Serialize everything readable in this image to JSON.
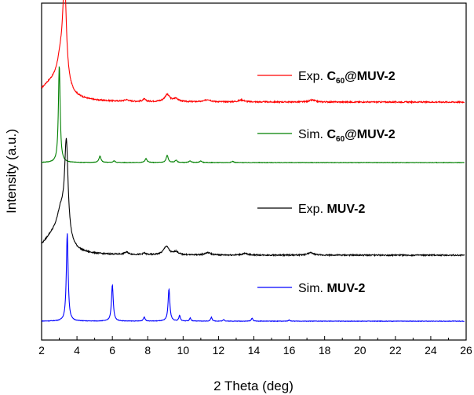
{
  "chart_data": {
    "type": "line",
    "xlabel": "2 Theta (deg)",
    "ylabel": "Intensity (a.u.)",
    "xlim": [
      2,
      26
    ],
    "xticks": [
      2,
      4,
      6,
      8,
      10,
      12,
      14,
      16,
      18,
      20,
      22,
      24,
      26
    ],
    "y_tick_labels": "none",
    "grid": false,
    "series": [
      {
        "key": "exp_c60",
        "color": "#ff0000",
        "legend": {
          "prefix": "Exp. ",
          "bold_main": "C",
          "bold_sub": "60",
          "bold_rest": "@MUV-2"
        },
        "baseline": 130,
        "peaks": [
          [
            3.3,
            120,
            0.12
          ],
          [
            3.1,
            40,
            0.3
          ],
          [
            2.5,
            20,
            0.8
          ],
          [
            9.1,
            9,
            0.18
          ],
          [
            9.6,
            4,
            0.15
          ],
          [
            7.8,
            3,
            0.1
          ],
          [
            6.8,
            2,
            0.15
          ],
          [
            11.4,
            3,
            0.2
          ],
          [
            13.3,
            2.5,
            0.2
          ],
          [
            17.3,
            2.5,
            0.2
          ]
        ]
      },
      {
        "key": "sim_c60",
        "color": "#008000",
        "legend": {
          "prefix": "Sim. ",
          "bold_main": "C",
          "bold_sub": "60",
          "bold_rest": "@MUV-2"
        },
        "baseline": 207,
        "peaks": [
          [
            3.0,
            124,
            0.06
          ],
          [
            5.3,
            8,
            0.07
          ],
          [
            6.1,
            2,
            0.07
          ],
          [
            7.9,
            5,
            0.07
          ],
          [
            9.1,
            9,
            0.07
          ],
          [
            9.6,
            3,
            0.07
          ],
          [
            10.4,
            2,
            0.07
          ],
          [
            11.0,
            2,
            0.07
          ],
          [
            12.8,
            1.5,
            0.07
          ]
        ]
      },
      {
        "key": "exp_muv2",
        "color": "#000000",
        "legend": {
          "prefix": "Exp. ",
          "bold_main": "MUV-2",
          "bold_sub": "",
          "bold_rest": ""
        },
        "baseline": 325,
        "peaks": [
          [
            3.4,
            120,
            0.12
          ],
          [
            3.1,
            40,
            0.3
          ],
          [
            2.6,
            20,
            0.7
          ],
          [
            9.05,
            11,
            0.18
          ],
          [
            9.6,
            4,
            0.15
          ],
          [
            6.8,
            3,
            0.15
          ],
          [
            7.8,
            2,
            0.1
          ],
          [
            11.4,
            3,
            0.2
          ],
          [
            13.5,
            2,
            0.2
          ],
          [
            17.2,
            3,
            0.2
          ]
        ]
      },
      {
        "key": "sim_muv2",
        "color": "#0000ff",
        "legend": {
          "prefix": "Sim. ",
          "bold_main": "MUV-2",
          "bold_sub": "",
          "bold_rest": ""
        },
        "baseline": 409,
        "peaks": [
          [
            3.45,
            112,
            0.06
          ],
          [
            6.0,
            46,
            0.06
          ],
          [
            7.8,
            5,
            0.06
          ],
          [
            9.2,
            41,
            0.06
          ],
          [
            9.8,
            7,
            0.05
          ],
          [
            10.4,
            4,
            0.05
          ],
          [
            11.6,
            5,
            0.05
          ],
          [
            12.3,
            2,
            0.05
          ],
          [
            13.9,
            4,
            0.05
          ],
          [
            16.0,
            1.5,
            0.05
          ]
        ]
      }
    ],
    "legend_placement": "right-of-each-trace"
  }
}
